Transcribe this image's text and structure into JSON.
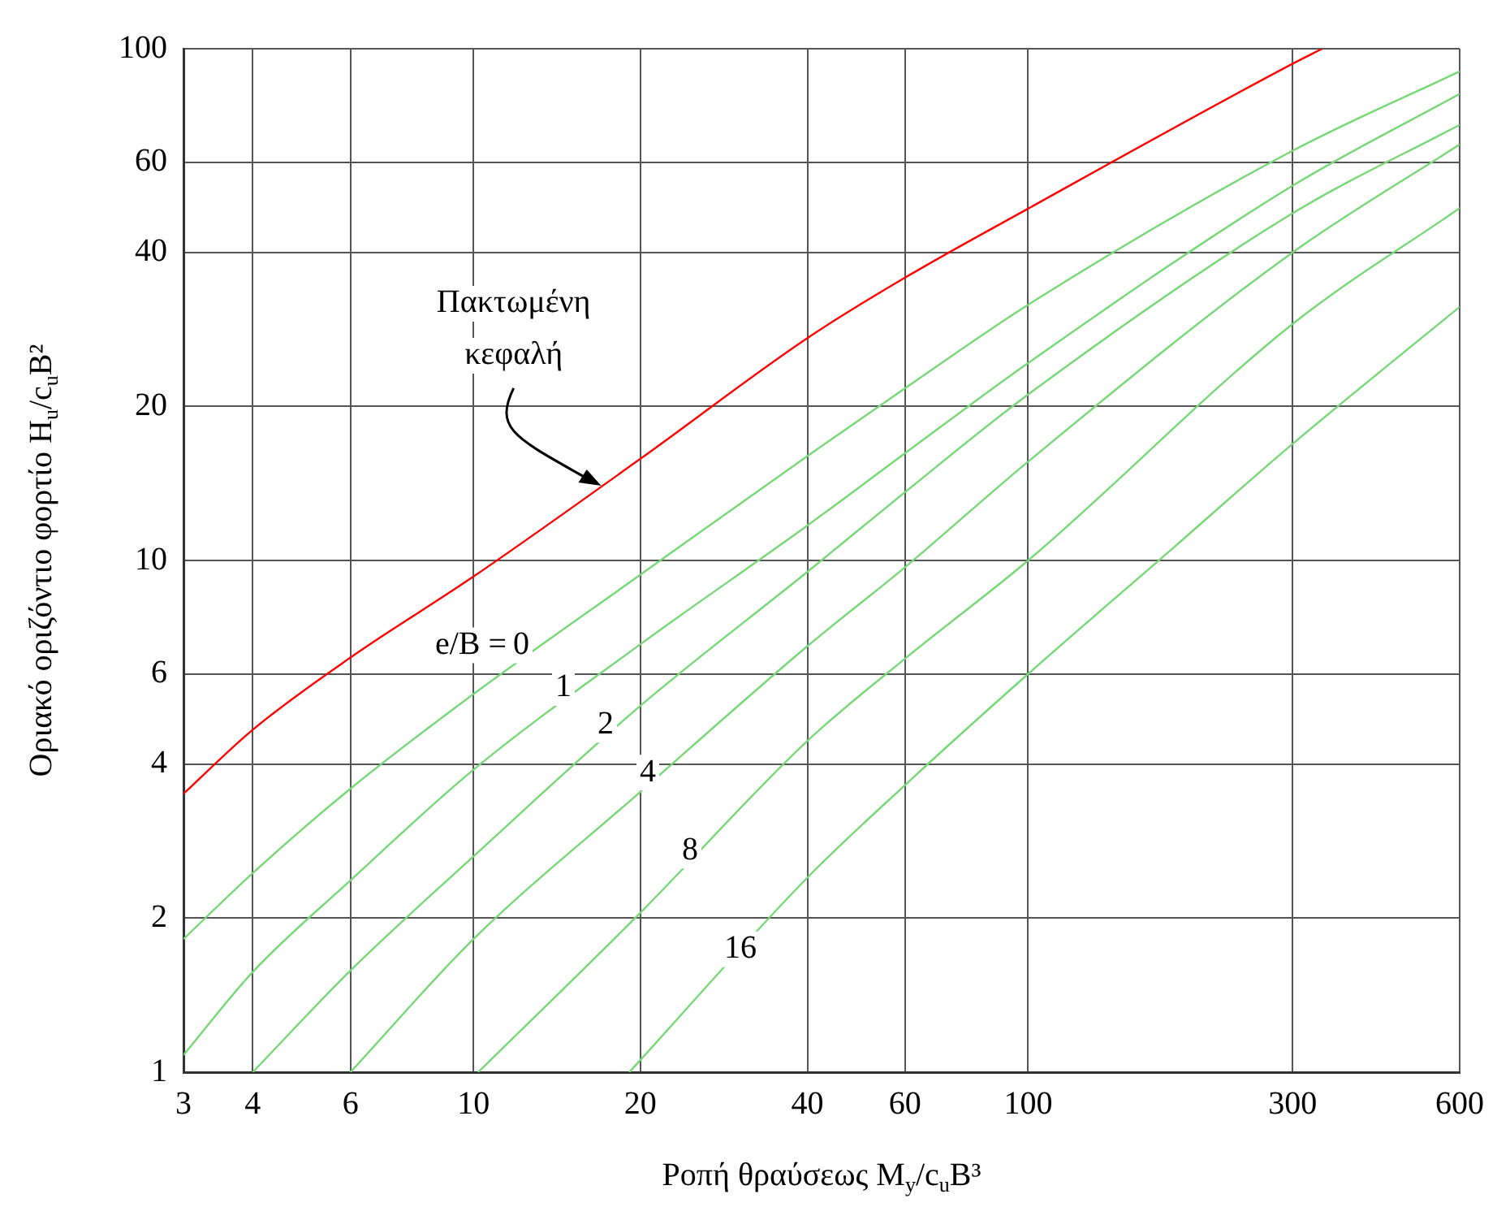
{
  "chart_data": {
    "type": "line",
    "xlabel": "Ροπή θραύσεως M$_{y}$/c$_{u}$B³",
    "ylabel": "Οριακό οριζόντιο φορτίο H$_{u}$/c$_{u}$B²",
    "log": "xy",
    "grid": true,
    "legend": false,
    "marker": "none",
    "line_style": "solid",
    "xlim": [
      3,
      600
    ],
    "xticks": [
      3,
      4,
      6,
      10,
      20,
      40,
      60,
      100,
      300,
      600
    ],
    "ylim": [
      1,
      100
    ],
    "yticks": [
      1,
      2,
      4,
      6,
      10,
      20,
      40,
      60,
      100
    ],
    "series": [
      {
        "color": "#ff0000",
        "x": [
          3,
          4,
          6,
          10,
          20,
          40,
          60,
          100,
          300,
          339
        ],
        "values": [
          3.5,
          4.67,
          6.46,
          9.3,
          15.8,
          27.2,
          35.7,
          48.7,
          93.5,
          100
        ]
      },
      {
        "name": "0",
        "color": "#77d877",
        "x": [
          3,
          4,
          6,
          10,
          20,
          40,
          60,
          100,
          300,
          600
        ],
        "values": [
          1.82,
          2.45,
          3.58,
          5.48,
          9.38,
          16,
          21.7,
          31.6,
          63.2,
          90.3
        ]
      },
      {
        "name": "1",
        "color": "#77d877",
        "x": [
          3,
          4,
          6,
          10,
          20,
          40,
          60,
          100,
          300,
          600
        ],
        "values": [
          1.08,
          1.57,
          2.37,
          3.9,
          6.86,
          11.7,
          16.2,
          24.3,
          54,
          81.6
        ]
      },
      {
        "name": "2",
        "color": "#77d877",
        "x": [
          4,
          6,
          10,
          20,
          40,
          60,
          100,
          300,
          600
        ],
        "values": [
          1,
          1.58,
          2.64,
          5.2,
          9.5,
          13.6,
          21.1,
          47.7,
          71
        ]
      },
      {
        "name": "4",
        "color": "#77d877",
        "x": [
          6,
          10,
          20,
          40,
          60,
          100,
          300,
          600
        ],
        "values": [
          1,
          1.82,
          3.53,
          6.8,
          9.7,
          15.6,
          40,
          65
        ]
      },
      {
        "name": "8",
        "color": "#77d877",
        "x": [
          10.2,
          20,
          40,
          60,
          100,
          300,
          600
        ],
        "values": [
          1,
          2.05,
          4.44,
          6.43,
          10,
          29,
          48.8
        ]
      },
      {
        "name": "16",
        "color": "#77d877",
        "x": [
          19.1,
          40,
          60,
          100,
          183,
          300,
          600
        ],
        "values": [
          1,
          2.4,
          3.64,
          6,
          10.6,
          16.9,
          31.3
        ]
      }
    ],
    "annotations": [
      {
        "text": "Πακτωμένη κεφαλή",
        "x": 17,
        "y": 14
      },
      "e/B ="
    ]
  }
}
